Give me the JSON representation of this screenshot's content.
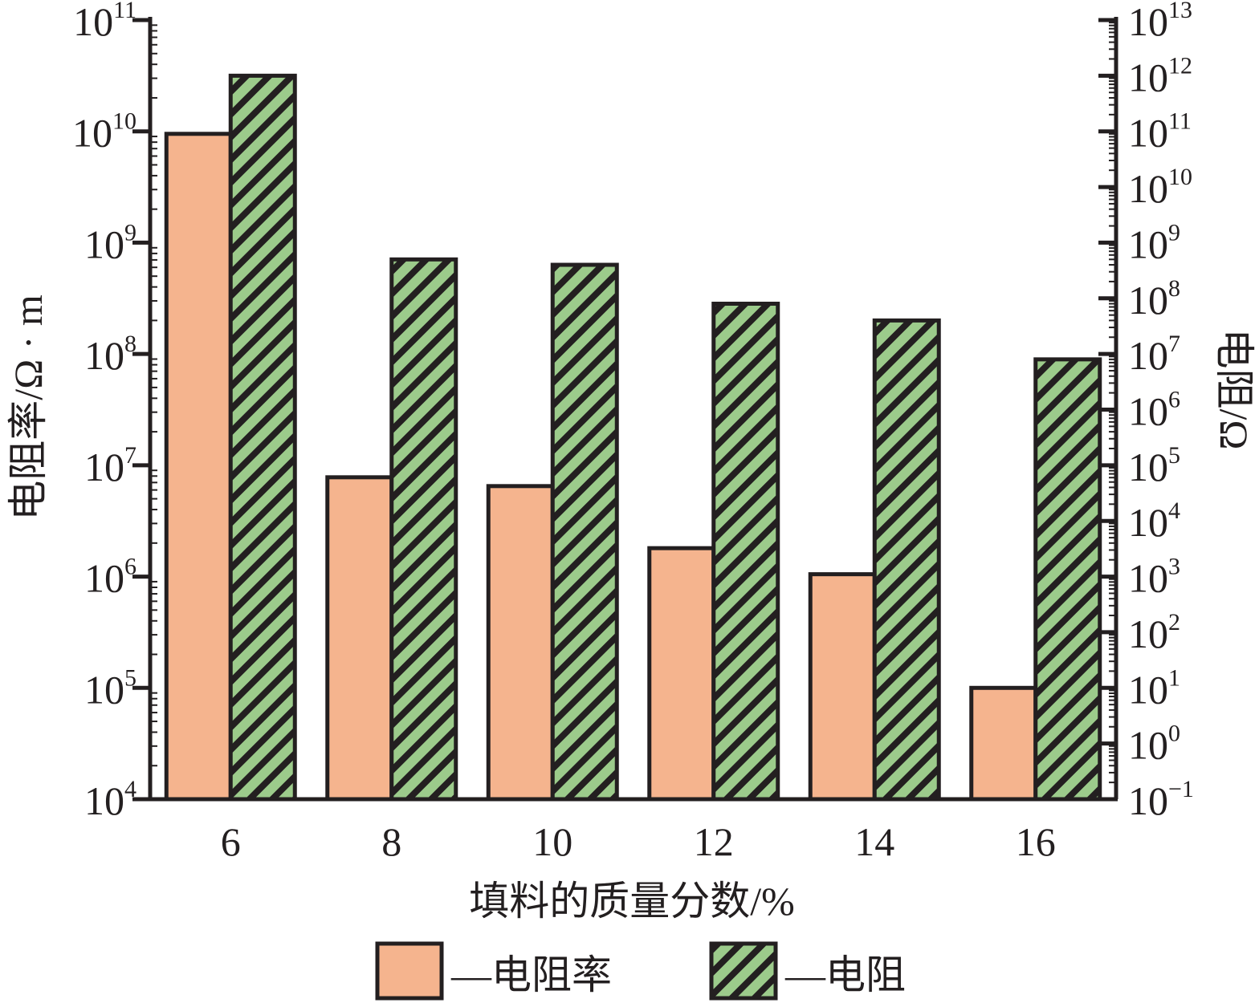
{
  "chart_data": {
    "type": "bar",
    "categories": [
      "6",
      "8",
      "10",
      "12",
      "14",
      "16"
    ],
    "xlabel": "填料的质量分数/%",
    "ylabel_left": "电阻率/Ω · m",
    "ylabel_right": "电阻/Ω",
    "left_axis": {
      "scale": "log",
      "range": [
        10000,
        100000000000
      ],
      "tick_exponents": [
        4,
        5,
        6,
        7,
        8,
        9,
        10,
        11
      ],
      "tick_base": "10"
    },
    "right_axis": {
      "scale": "log",
      "range": [
        0.1,
        10000000000000
      ],
      "tick_exponents": [
        "−1",
        "0",
        "1",
        "2",
        "3",
        "4",
        "5",
        "6",
        "7",
        "8",
        "9",
        "10",
        "11",
        "12",
        "13"
      ],
      "tick_base": "10"
    },
    "series": [
      {
        "name": "—电阻率",
        "axis": "left",
        "color": "#f5b48e",
        "pattern": "solid",
        "values": [
          9500000000,
          7800000,
          6500000,
          1800000,
          1050000,
          100000
        ]
      },
      {
        "name": "—电阻",
        "axis": "right",
        "color": "#9ccb8b",
        "pattern": "diagonal-hatch",
        "values": [
          1000000000000,
          500000000,
          400000000,
          80000000,
          40000000,
          8000000
        ]
      }
    ],
    "legend_position": "bottom-center",
    "grid": false
  }
}
